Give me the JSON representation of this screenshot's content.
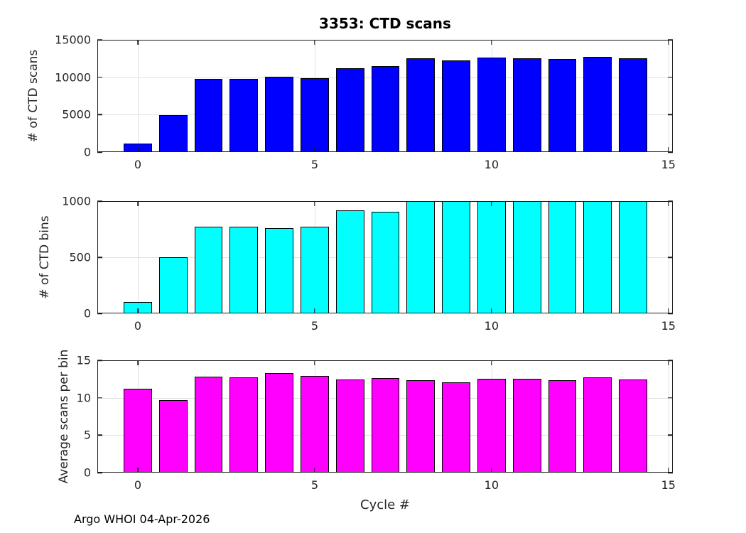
{
  "figure": {
    "title": "3353: CTD scans",
    "xlabel": "Cycle #",
    "footer": "Argo WHOI 04-Apr-2026"
  },
  "chart_data": [
    {
      "type": "bar",
      "title": "3353: CTD scans",
      "ylabel": "# of CTD scans",
      "x": [
        0,
        1,
        2,
        3,
        4,
        5,
        6,
        7,
        8,
        9,
        10,
        11,
        12,
        13,
        14
      ],
      "values": [
        1100,
        4900,
        9800,
        9800,
        10050,
        9900,
        11200,
        11500,
        12500,
        12250,
        12600,
        12550,
        12400,
        12750,
        12500
      ],
      "xlim": [
        -1.145,
        15.125
      ],
      "ylim": [
        0,
        15000
      ],
      "xticks": [
        0,
        5,
        10,
        15
      ],
      "yticks": [
        0,
        5000,
        10000,
        15000
      ],
      "grid": true,
      "bar_width": 0.8,
      "bar_color": "#0000ff",
      "bar_edge_color": "#000000"
    },
    {
      "type": "bar",
      "title": "",
      "ylabel": "# of CTD bins",
      "x": [
        0,
        1,
        2,
        3,
        4,
        5,
        6,
        7,
        8,
        9,
        10,
        11,
        12,
        13,
        14
      ],
      "values": [
        100,
        500,
        775,
        775,
        760,
        775,
        915,
        905,
        1000,
        1000,
        1000,
        1000,
        1000,
        1000,
        1000
      ],
      "xlim": [
        -1.145,
        15.125
      ],
      "ylim": [
        0,
        1000
      ],
      "xticks": [
        0,
        5,
        10,
        15
      ],
      "yticks": [
        0,
        500,
        1000
      ],
      "grid": true,
      "bar_width": 0.8,
      "bar_color": "#00ffff",
      "bar_edge_color": "#000000"
    },
    {
      "type": "bar",
      "title": "",
      "ylabel": "Average scans per bin",
      "xlabel": "Cycle #",
      "x": [
        0,
        1,
        2,
        3,
        4,
        5,
        6,
        7,
        8,
        9,
        10,
        11,
        12,
        13,
        14
      ],
      "values": [
        11.2,
        9.7,
        12.8,
        12.7,
        13.3,
        12.9,
        12.4,
        12.6,
        12.3,
        12.1,
        12.5,
        12.5,
        12.3,
        12.7,
        12.4
      ],
      "xlim": [
        -1.145,
        15.125
      ],
      "ylim": [
        0,
        15
      ],
      "xticks": [
        0,
        5,
        10,
        15
      ],
      "yticks": [
        0,
        5,
        10,
        15
      ],
      "grid": true,
      "bar_width": 0.8,
      "bar_color": "#ff00ff",
      "bar_edge_color": "#000000"
    }
  ]
}
